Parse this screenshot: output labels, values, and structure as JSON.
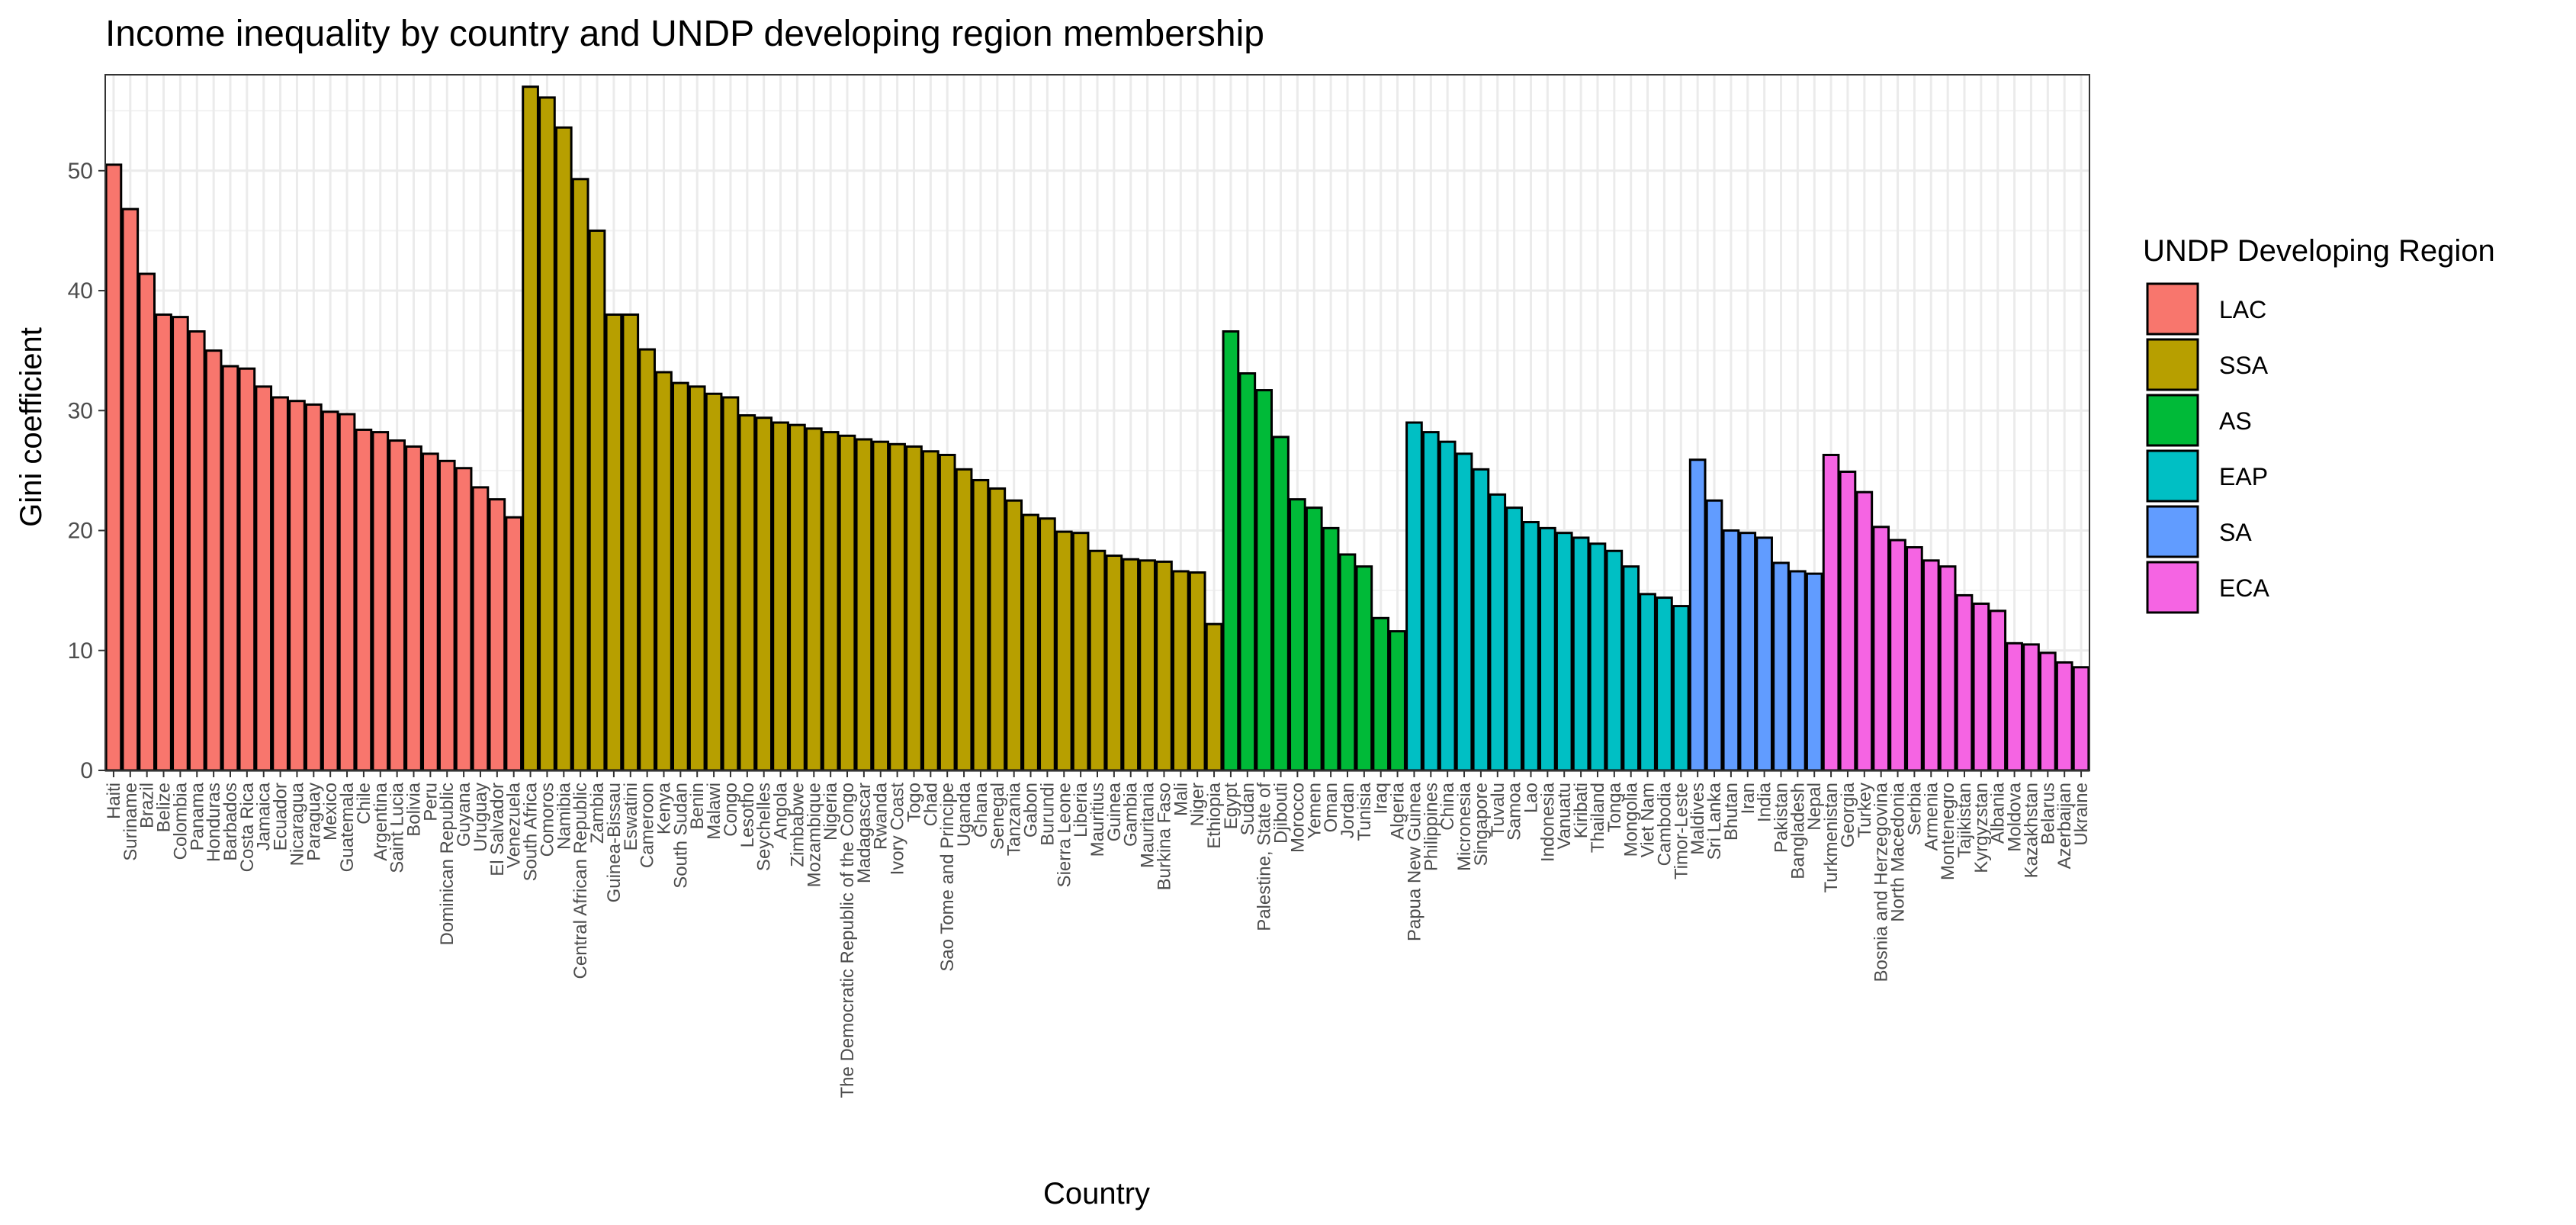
{
  "chart_data": {
    "type": "bar",
    "title": "Income inequality by country and UNDP developing region membership",
    "xlabel": "Country",
    "ylabel": "Gini coefficient",
    "ylim": [
      0,
      58
    ],
    "yticks": [
      0,
      10,
      20,
      30,
      40,
      50
    ],
    "grid": true,
    "legend": {
      "title": "UNDP Developing Region",
      "placement": "right",
      "entries": [
        {
          "name": "LAC",
          "color": "#F8766D"
        },
        {
          "name": "SSA",
          "color": "#B79F00"
        },
        {
          "name": "AS",
          "color": "#00BA38"
        },
        {
          "name": "EAP",
          "color": "#00BFC4"
        },
        {
          "name": "SA",
          "color": "#619CFF"
        },
        {
          "name": "ECA",
          "color": "#F564E3"
        }
      ]
    },
    "categories": [
      "Haiti",
      "Suriname",
      "Brazil",
      "Belize",
      "Colombia",
      "Panama",
      "Honduras",
      "Barbados",
      "Costa Rica",
      "Jamaica",
      "Ecuador",
      "Nicaragua",
      "Paraguay",
      "Mexico",
      "Guatemala",
      "Chile",
      "Argentina",
      "Saint Lucia",
      "Bolivia",
      "Peru",
      "Dominican Republic",
      "Guyana",
      "Uruguay",
      "El Salvador",
      "Venezuela",
      "South Africa",
      "Comoros",
      "Namibia",
      "Central African Republic",
      "Zambia",
      "Guinea-Bissau",
      "Eswatini",
      "Cameroon",
      "Kenya",
      "South Sudan",
      "Benin",
      "Malawi",
      "Congo",
      "Lesotho",
      "Seychelles",
      "Angola",
      "Zimbabwe",
      "Mozambique",
      "Nigeria",
      "The Democratic Republic of the Congo",
      "Madagascar",
      "Rwanda",
      "Ivory Coast",
      "Togo",
      "Chad",
      "Sao Tome and Principe",
      "Uganda",
      "Ghana",
      "Senegal",
      "Tanzania",
      "Gabon",
      "Burundi",
      "Sierra Leone",
      "Liberia",
      "Mauritius",
      "Guinea",
      "Gambia",
      "Mauritania",
      "Burkina Faso",
      "Mali",
      "Niger",
      "Ethiopia",
      "Egypt",
      "Sudan",
      "Palestine, State of",
      "Djibouti",
      "Morocco",
      "Yemen",
      "Oman",
      "Jordan",
      "Tunisia",
      "Iraq",
      "Algeria",
      "Papua New Guinea",
      "Philippines",
      "China",
      "Micronesia",
      "Singapore",
      "Tuvalu",
      "Samoa",
      "Lao",
      "Indonesia",
      "Vanuatu",
      "Kiribati",
      "Thailand",
      "Tonga",
      "Mongolia",
      "Viet Nam",
      "Cambodia",
      "Timor-Leste",
      "Maldives",
      "Sri Lanka",
      "Bhutan",
      "Iran",
      "India",
      "Pakistan",
      "Bangladesh",
      "Nepal",
      "Turkmenistan",
      "Georgia",
      "Turkey",
      "Bosnia and Herzegovina",
      "North Macedonia",
      "Serbia",
      "Armenia",
      "Montenegro",
      "Tajikistan",
      "Kyrgyzstan",
      "Albania",
      "Moldova",
      "Kazakhstan",
      "Belarus",
      "Azerbaijan",
      "Ukraine"
    ],
    "regions": [
      "LAC",
      "LAC",
      "LAC",
      "LAC",
      "LAC",
      "LAC",
      "LAC",
      "LAC",
      "LAC",
      "LAC",
      "LAC",
      "LAC",
      "LAC",
      "LAC",
      "LAC",
      "LAC",
      "LAC",
      "LAC",
      "LAC",
      "LAC",
      "LAC",
      "LAC",
      "LAC",
      "LAC",
      "LAC",
      "SSA",
      "SSA",
      "SSA",
      "SSA",
      "SSA",
      "SSA",
      "SSA",
      "SSA",
      "SSA",
      "SSA",
      "SSA",
      "SSA",
      "SSA",
      "SSA",
      "SSA",
      "SSA",
      "SSA",
      "SSA",
      "SSA",
      "SSA",
      "SSA",
      "SSA",
      "SSA",
      "SSA",
      "SSA",
      "SSA",
      "SSA",
      "SSA",
      "SSA",
      "SSA",
      "SSA",
      "SSA",
      "SSA",
      "SSA",
      "SSA",
      "SSA",
      "SSA",
      "SSA",
      "SSA",
      "SSA",
      "SSA",
      "SSA",
      "AS",
      "AS",
      "AS",
      "AS",
      "AS",
      "AS",
      "AS",
      "AS",
      "AS",
      "AS",
      "AS",
      "EAP",
      "EAP",
      "EAP",
      "EAP",
      "EAP",
      "EAP",
      "EAP",
      "EAP",
      "EAP",
      "EAP",
      "EAP",
      "EAP",
      "EAP",
      "EAP",
      "EAP",
      "EAP",
      "EAP",
      "SA",
      "SA",
      "SA",
      "SA",
      "SA",
      "SA",
      "SA",
      "SA",
      "ECA",
      "ECA",
      "ECA",
      "ECA",
      "ECA",
      "ECA",
      "ECA",
      "ECA",
      "ECA",
      "ECA",
      "ECA",
      "ECA",
      "ECA",
      "ECA",
      "ECA",
      "ECA"
    ],
    "values": [
      50.5,
      46.8,
      41.4,
      38.0,
      37.8,
      36.6,
      35.0,
      33.7,
      33.5,
      32.0,
      31.1,
      30.8,
      30.5,
      29.9,
      29.7,
      28.4,
      28.2,
      27.5,
      27.0,
      26.4,
      25.8,
      25.2,
      23.6,
      22.6,
      21.1,
      57.0,
      56.1,
      53.6,
      49.3,
      45.0,
      38.0,
      38.0,
      35.1,
      33.2,
      32.3,
      32.0,
      31.4,
      31.1,
      29.6,
      29.4,
      29.0,
      28.8,
      28.5,
      28.2,
      27.9,
      27.6,
      27.4,
      27.2,
      27.0,
      26.6,
      26.3,
      25.1,
      24.2,
      23.5,
      22.5,
      21.3,
      21.0,
      19.9,
      19.8,
      18.3,
      17.9,
      17.6,
      17.5,
      17.4,
      16.6,
      16.5,
      12.2,
      36.6,
      33.1,
      31.7,
      27.8,
      22.6,
      21.9,
      20.2,
      18.0,
      17.0,
      12.7,
      11.6,
      29.0,
      28.2,
      27.4,
      26.4,
      25.1,
      23.0,
      21.9,
      20.7,
      20.2,
      19.8,
      19.4,
      18.9,
      18.3,
      17.0,
      14.7,
      14.4,
      13.7,
      25.9,
      22.5,
      20.0,
      19.8,
      19.4,
      17.3,
      16.6,
      16.4,
      26.3,
      24.9,
      23.2,
      20.3,
      19.2,
      18.6,
      17.5,
      17.0,
      14.6,
      13.9,
      13.3,
      10.6,
      10.5,
      9.8,
      9.0,
      8.6
    ]
  }
}
